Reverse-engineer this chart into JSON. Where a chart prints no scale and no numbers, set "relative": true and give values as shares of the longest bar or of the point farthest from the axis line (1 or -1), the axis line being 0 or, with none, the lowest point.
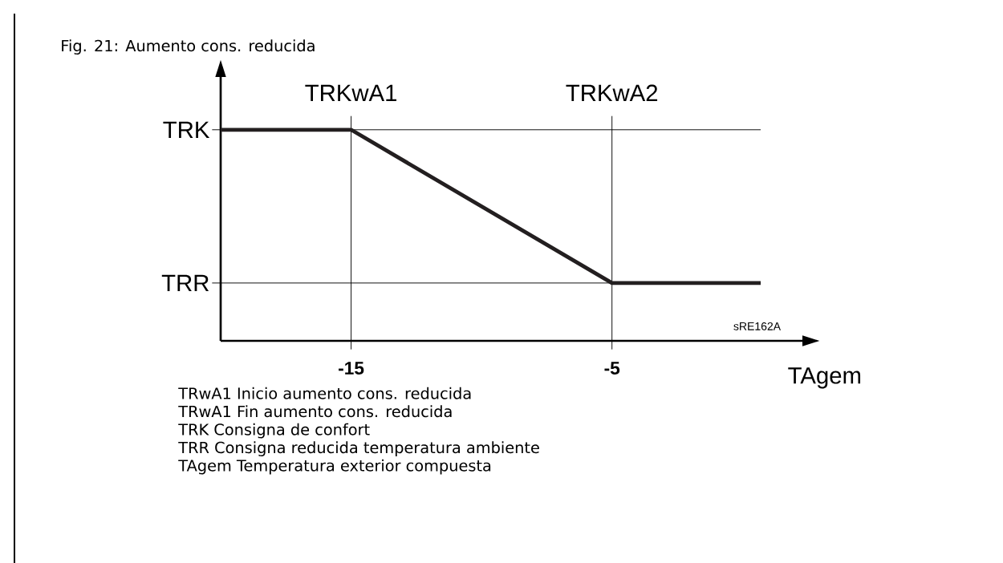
{
  "chart_data": {
    "type": "line",
    "relative": true,
    "title": "Fig. 21:  Aumento cons. reducida",
    "xlabel": "TAgem",
    "x": [
      -20,
      -15,
      -5,
      0.7
    ],
    "series": [
      {
        "color": "#231f20",
        "values": [
          1,
          1,
          0.274,
          0.274
        ]
      }
    ],
    "xlim": [
      -20,
      2.3
    ],
    "xticks": [
      -15,
      -5
    ],
    "ref_lines": [
      {
        "axis": "y",
        "value": 1,
        "label": "TRK"
      },
      {
        "axis": "y",
        "value": 0.274,
        "label": "TRR"
      },
      {
        "axis": "x",
        "value": -15,
        "label": "TRKwA1"
      },
      {
        "axis": "x",
        "value": -5,
        "label": "TRKwA2"
      }
    ],
    "annotations": [
      "sRE162A",
      "TRwA1   Inicio aumento cons. reducida",
      "TRwA1   Fin aumento cons. reducida",
      "TRK      Consigna de confort",
      "TRR      Consigna reducida temperatura ambiente",
      "TAgem   Temperatura exterior compuesta"
    ]
  }
}
